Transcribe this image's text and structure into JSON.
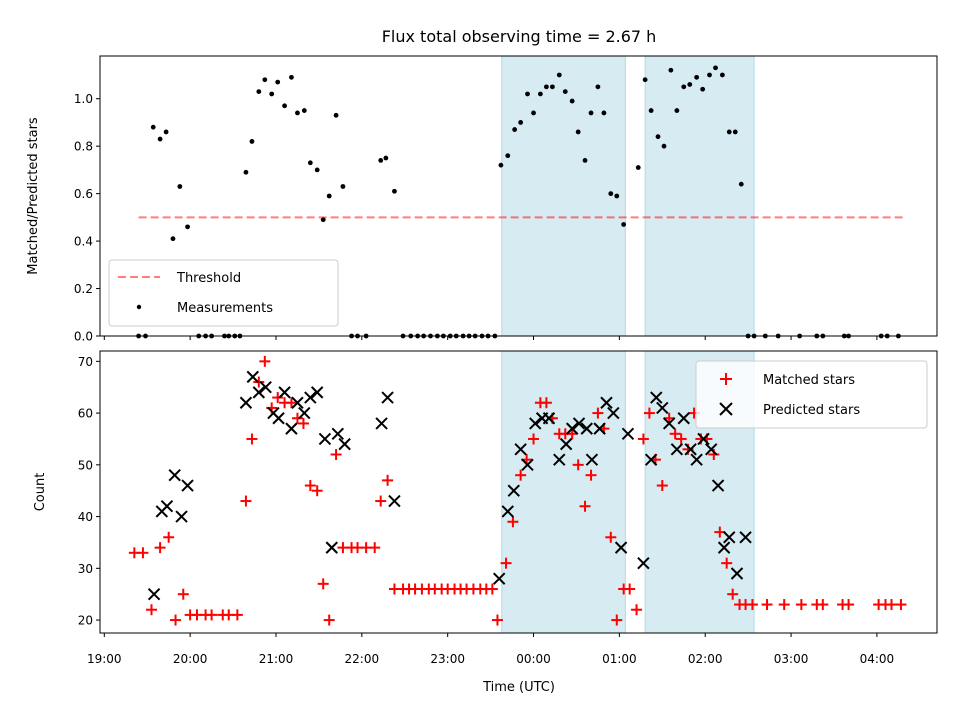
{
  "title": "Flux total observing time = 2.67 h",
  "colors": {
    "band": "#add8e6",
    "threshold": "#ff0000",
    "matched": "#ff0000",
    "predicted": "#000000",
    "measurement": "#000000"
  },
  "x_ticks": [
    "19:00",
    "20:00",
    "21:00",
    "22:00",
    "23:00",
    "00:00",
    "01:00",
    "02:00",
    "03:00",
    "04:00"
  ],
  "top": {
    "ylabel": "Matched/Predicted stars",
    "y_ticks": [
      "0.0",
      "0.2",
      "0.4",
      "0.6",
      "0.8",
      "1.0"
    ],
    "legend": {
      "threshold": "Threshold",
      "measurements": "Measurements"
    }
  },
  "bottom": {
    "ylabel": "Count",
    "xlabel": "Time (UTC)",
    "y_ticks": [
      "20",
      "30",
      "40",
      "50",
      "60",
      "70"
    ],
    "legend": {
      "matched": "Matched stars",
      "predicted": "Predicted stars"
    }
  },
  "chart_data": [
    {
      "type": "scatter",
      "title": "Flux total observing time = 2.67 h",
      "xlabel": "",
      "ylabel": "Matched/Predicted stars",
      "x_unit": "hours since 19:00 UTC",
      "xlim": [
        -0.05,
        9.7
      ],
      "ylim": [
        0,
        1.18
      ],
      "shaded_intervals": [
        [
          4.63,
          6.07
        ],
        [
          6.3,
          7.57
        ]
      ],
      "threshold": {
        "name": "Threshold",
        "y": 0.5,
        "x": [
          0.4,
          9.3
        ],
        "style": "dashed"
      },
      "series": [
        {
          "name": "Measurements",
          "points": [
            [
              0.4,
              0
            ],
            [
              0.48,
              0
            ],
            [
              0.57,
              0.88
            ],
            [
              0.65,
              0.83
            ],
            [
              0.72,
              0.86
            ],
            [
              0.8,
              0.41
            ],
            [
              0.88,
              0.63
            ],
            [
              0.97,
              0.46
            ],
            [
              1.1,
              0
            ],
            [
              1.18,
              0
            ],
            [
              1.25,
              0
            ],
            [
              1.4,
              0
            ],
            [
              1.45,
              0
            ],
            [
              1.52,
              0
            ],
            [
              1.58,
              0
            ],
            [
              1.65,
              0.69
            ],
            [
              1.72,
              0.82
            ],
            [
              1.8,
              1.03
            ],
            [
              1.87,
              1.08
            ],
            [
              1.95,
              1.02
            ],
            [
              2.02,
              1.07
            ],
            [
              2.1,
              0.97
            ],
            [
              2.18,
              1.09
            ],
            [
              2.25,
              0.94
            ],
            [
              2.33,
              0.95
            ],
            [
              2.4,
              0.73
            ],
            [
              2.48,
              0.7
            ],
            [
              2.55,
              0.49
            ],
            [
              2.62,
              0.59
            ],
            [
              2.7,
              0.93
            ],
            [
              2.78,
              0.63
            ],
            [
              2.88,
              0
            ],
            [
              2.95,
              0
            ],
            [
              3.05,
              0
            ],
            [
              3.22,
              0.74
            ],
            [
              3.28,
              0.75
            ],
            [
              3.38,
              0.61
            ],
            [
              3.48,
              0
            ],
            [
              3.57,
              0
            ],
            [
              3.65,
              0
            ],
            [
              3.72,
              0
            ],
            [
              3.8,
              0
            ],
            [
              3.88,
              0
            ],
            [
              3.95,
              0
            ],
            [
              4.03,
              0
            ],
            [
              4.1,
              0
            ],
            [
              4.18,
              0
            ],
            [
              4.25,
              0
            ],
            [
              4.32,
              0
            ],
            [
              4.4,
              0
            ],
            [
              4.47,
              0
            ],
            [
              4.55,
              0
            ],
            [
              4.62,
              0.72
            ],
            [
              4.7,
              0.76
            ],
            [
              4.78,
              0.87
            ],
            [
              4.85,
              0.9
            ],
            [
              4.93,
              1.02
            ],
            [
              5.0,
              0.94
            ],
            [
              5.08,
              1.02
            ],
            [
              5.15,
              1.05
            ],
            [
              5.22,
              1.05
            ],
            [
              5.3,
              1.1
            ],
            [
              5.37,
              1.03
            ],
            [
              5.45,
              0.99
            ],
            [
              5.52,
              0.86
            ],
            [
              5.6,
              0.74
            ],
            [
              5.67,
              0.94
            ],
            [
              5.75,
              1.05
            ],
            [
              5.82,
              0.94
            ],
            [
              5.9,
              0.6
            ],
            [
              5.97,
              0.59
            ],
            [
              6.05,
              0.47
            ],
            [
              6.22,
              0.71
            ],
            [
              6.3,
              1.08
            ],
            [
              6.37,
              0.95
            ],
            [
              6.45,
              0.84
            ],
            [
              6.52,
              0.8
            ],
            [
              6.6,
              1.12
            ],
            [
              6.67,
              0.95
            ],
            [
              6.75,
              1.05
            ],
            [
              6.82,
              1.06
            ],
            [
              6.9,
              1.09
            ],
            [
              6.97,
              1.04
            ],
            [
              7.05,
              1.1
            ],
            [
              7.12,
              1.13
            ],
            [
              7.2,
              1.1
            ],
            [
              7.28,
              0.86
            ],
            [
              7.35,
              0.86
            ],
            [
              7.42,
              0.64
            ],
            [
              7.5,
              0
            ],
            [
              7.57,
              0
            ],
            [
              7.7,
              0
            ],
            [
              7.85,
              0
            ],
            [
              8.1,
              0
            ],
            [
              8.3,
              0
            ],
            [
              8.37,
              0
            ],
            [
              8.62,
              0
            ],
            [
              8.67,
              0
            ],
            [
              9.05,
              0
            ],
            [
              9.12,
              0
            ],
            [
              9.25,
              0
            ]
          ]
        }
      ]
    },
    {
      "type": "scatter",
      "title": "",
      "xlabel": "Time (UTC)",
      "ylabel": "Count",
      "x_unit": "hours since 19:00 UTC",
      "xlim": [
        -0.05,
        9.7
      ],
      "ylim": [
        17.5,
        72
      ],
      "shaded_intervals": [
        [
          4.63,
          6.07
        ],
        [
          6.3,
          7.57
        ]
      ],
      "series": [
        {
          "name": "Matched stars",
          "marker": "plus",
          "points": [
            [
              0.35,
              33
            ],
            [
              0.45,
              33
            ],
            [
              0.55,
              22
            ],
            [
              0.65,
              34
            ],
            [
              0.75,
              36
            ],
            [
              0.83,
              20
            ],
            [
              0.92,
              25
            ],
            [
              1.0,
              21
            ],
            [
              1.08,
              21
            ],
            [
              1.18,
              21
            ],
            [
              1.25,
              21
            ],
            [
              1.38,
              21
            ],
            [
              1.45,
              21
            ],
            [
              1.55,
              21
            ],
            [
              1.65,
              43
            ],
            [
              1.72,
              55
            ],
            [
              1.8,
              66
            ],
            [
              1.87,
              70
            ],
            [
              1.95,
              61
            ],
            [
              2.02,
              63
            ],
            [
              2.1,
              62
            ],
            [
              2.18,
              62
            ],
            [
              2.25,
              59
            ],
            [
              2.32,
              58
            ],
            [
              2.4,
              46
            ],
            [
              2.48,
              45
            ],
            [
              2.55,
              27
            ],
            [
              2.62,
              20
            ],
            [
              2.7,
              52
            ],
            [
              2.78,
              34
            ],
            [
              2.88,
              34
            ],
            [
              2.95,
              34
            ],
            [
              3.05,
              34
            ],
            [
              3.15,
              34
            ],
            [
              3.22,
              43
            ],
            [
              3.3,
              47
            ],
            [
              3.38,
              26
            ],
            [
              3.48,
              26
            ],
            [
              3.55,
              26
            ],
            [
              3.62,
              26
            ],
            [
              3.7,
              26
            ],
            [
              3.78,
              26
            ],
            [
              3.85,
              26
            ],
            [
              3.93,
              26
            ],
            [
              4.0,
              26
            ],
            [
              4.08,
              26
            ],
            [
              4.15,
              26
            ],
            [
              4.22,
              26
            ],
            [
              4.3,
              26
            ],
            [
              4.38,
              26
            ],
            [
              4.45,
              26
            ],
            [
              4.52,
              26
            ],
            [
              4.58,
              20
            ],
            [
              4.68,
              31
            ],
            [
              4.76,
              39
            ],
            [
              4.85,
              48
            ],
            [
              4.92,
              51
            ],
            [
              5.0,
              55
            ],
            [
              5.08,
              62
            ],
            [
              5.15,
              62
            ],
            [
              5.22,
              59
            ],
            [
              5.3,
              56
            ],
            [
              5.37,
              56
            ],
            [
              5.45,
              56
            ],
            [
              5.52,
              50
            ],
            [
              5.6,
              42
            ],
            [
              5.67,
              48
            ],
            [
              5.75,
              60
            ],
            [
              5.82,
              57
            ],
            [
              5.9,
              36
            ],
            [
              5.97,
              20
            ],
            [
              6.05,
              26
            ],
            [
              6.12,
              26
            ],
            [
              6.2,
              22
            ],
            [
              6.28,
              55
            ],
            [
              6.35,
              60
            ],
            [
              6.42,
              51
            ],
            [
              6.5,
              46
            ],
            [
              6.58,
              59
            ],
            [
              6.65,
              56
            ],
            [
              6.72,
              55
            ],
            [
              6.8,
              53
            ],
            [
              6.87,
              60
            ],
            [
              6.95,
              55
            ],
            [
              7.02,
              55
            ],
            [
              7.1,
              52
            ],
            [
              7.17,
              37
            ],
            [
              7.25,
              31
            ],
            [
              7.32,
              25
            ],
            [
              7.4,
              23
            ],
            [
              7.47,
              23
            ],
            [
              7.55,
              23
            ],
            [
              7.72,
              23
            ],
            [
              7.92,
              23
            ],
            [
              8.12,
              23
            ],
            [
              8.3,
              23
            ],
            [
              8.37,
              23
            ],
            [
              8.6,
              23
            ],
            [
              8.67,
              23
            ],
            [
              9.02,
              23
            ],
            [
              9.1,
              23
            ],
            [
              9.17,
              23
            ],
            [
              9.28,
              23
            ]
          ]
        },
        {
          "name": "Predicted stars",
          "marker": "x",
          "points": [
            [
              0.58,
              25
            ],
            [
              0.67,
              41
            ],
            [
              0.73,
              42
            ],
            [
              0.82,
              48
            ],
            [
              0.9,
              40
            ],
            [
              0.97,
              46
            ],
            [
              1.65,
              62
            ],
            [
              1.73,
              67
            ],
            [
              1.8,
              64
            ],
            [
              1.88,
              65
            ],
            [
              1.97,
              60
            ],
            [
              2.03,
              59
            ],
            [
              2.1,
              64
            ],
            [
              2.18,
              57
            ],
            [
              2.25,
              62
            ],
            [
              2.33,
              60
            ],
            [
              2.4,
              63
            ],
            [
              2.48,
              64
            ],
            [
              2.57,
              55
            ],
            [
              2.65,
              34
            ],
            [
              2.72,
              56
            ],
            [
              2.8,
              54
            ],
            [
              3.23,
              58
            ],
            [
              3.3,
              63
            ],
            [
              3.38,
              43
            ],
            [
              4.6,
              28
            ],
            [
              4.7,
              41
            ],
            [
              4.77,
              45
            ],
            [
              4.85,
              53
            ],
            [
              4.93,
              50
            ],
            [
              5.02,
              58
            ],
            [
              5.1,
              59
            ],
            [
              5.18,
              59
            ],
            [
              5.3,
              51
            ],
            [
              5.38,
              54
            ],
            [
              5.45,
              57
            ],
            [
              5.53,
              58
            ],
            [
              5.62,
              57
            ],
            [
              5.68,
              51
            ],
            [
              5.77,
              57
            ],
            [
              5.85,
              62
            ],
            [
              5.93,
              60
            ],
            [
              6.02,
              34
            ],
            [
              6.1,
              56
            ],
            [
              6.28,
              31
            ],
            [
              6.37,
              51
            ],
            [
              6.43,
              63
            ],
            [
              6.5,
              61
            ],
            [
              6.58,
              58
            ],
            [
              6.67,
              53
            ],
            [
              6.75,
              59
            ],
            [
              6.83,
              53
            ],
            [
              6.9,
              51
            ],
            [
              6.98,
              55
            ],
            [
              7.07,
              53
            ],
            [
              7.15,
              46
            ],
            [
              7.22,
              34
            ],
            [
              7.28,
              36
            ],
            [
              7.37,
              29
            ],
            [
              7.47,
              36
            ]
          ]
        }
      ]
    }
  ]
}
